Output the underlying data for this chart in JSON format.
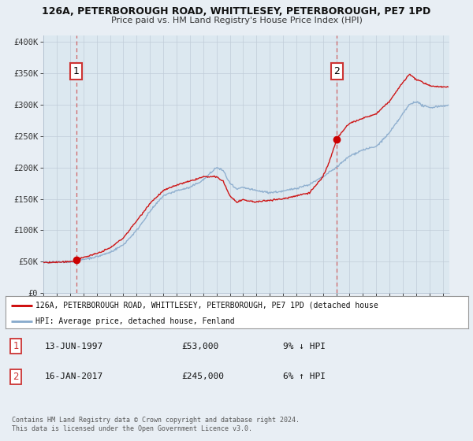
{
  "title1": "126A, PETERBOROUGH ROAD, WHITTLESEY, PETERBOROUGH, PE7 1PD",
  "title2": "Price paid vs. HM Land Registry's House Price Index (HPI)",
  "legend_line1": "126A, PETERBOROUGH ROAD, WHITTLESEY, PETERBOROUGH, PE7 1PD (detached house",
  "legend_line2": "HPI: Average price, detached house, Fenland",
  "annotation1_label": "1",
  "annotation1_date": "13-JUN-1997",
  "annotation1_price": "£53,000",
  "annotation1_hpi": "9% ↓ HPI",
  "annotation2_label": "2",
  "annotation2_date": "16-JAN-2017",
  "annotation2_price": "£245,000",
  "annotation2_hpi": "6% ↑ HPI",
  "sale1_year": 1997.45,
  "sale1_value": 53000,
  "sale2_year": 2017.04,
  "sale2_value": 245000,
  "ylabel_values": [
    0,
    50000,
    100000,
    150000,
    200000,
    250000,
    300000,
    350000,
    400000
  ],
  "ylabel_labels": [
    "£0",
    "£50K",
    "£100K",
    "£150K",
    "£200K",
    "£250K",
    "£300K",
    "£350K",
    "£400K"
  ],
  "copyright_text": "Contains HM Land Registry data © Crown copyright and database right 2024.\nThis data is licensed under the Open Government Licence v3.0.",
  "line_color_red": "#cc0000",
  "line_color_blue": "#88aacc",
  "background_color": "#e8eef4",
  "plot_bg_color": "#dce8f0",
  "grid_color": "#c0ccd8",
  "xmin": 1995,
  "xmax": 2025.5,
  "ymin": 0,
  "ymax": 410000,
  "hpi_points": [
    [
      1995.0,
      49000
    ],
    [
      1996.0,
      49500
    ],
    [
      1997.0,
      50000
    ],
    [
      1997.5,
      51000
    ],
    [
      1998.0,
      54000
    ],
    [
      1999.0,
      58000
    ],
    [
      2000.0,
      65000
    ],
    [
      2001.0,
      77000
    ],
    [
      2002.0,
      100000
    ],
    [
      2003.0,
      130000
    ],
    [
      2004.0,
      155000
    ],
    [
      2005.0,
      163000
    ],
    [
      2006.0,
      168000
    ],
    [
      2007.0,
      180000
    ],
    [
      2008.0,
      200000
    ],
    [
      2008.5,
      195000
    ],
    [
      2009.0,
      175000
    ],
    [
      2009.5,
      165000
    ],
    [
      2010.0,
      168000
    ],
    [
      2011.0,
      163000
    ],
    [
      2012.0,
      160000
    ],
    [
      2013.0,
      162000
    ],
    [
      2014.0,
      167000
    ],
    [
      2015.0,
      173000
    ],
    [
      2016.0,
      185000
    ],
    [
      2017.0,
      200000
    ],
    [
      2018.0,
      218000
    ],
    [
      2019.0,
      228000
    ],
    [
      2020.0,
      233000
    ],
    [
      2021.0,
      255000
    ],
    [
      2022.0,
      285000
    ],
    [
      2022.5,
      300000
    ],
    [
      2023.0,
      305000
    ],
    [
      2023.5,
      298000
    ],
    [
      2024.0,
      295000
    ],
    [
      2025.0,
      298000
    ]
  ],
  "red_points": [
    [
      1995.0,
      49000
    ],
    [
      1996.0,
      49200
    ],
    [
      1997.0,
      50000
    ],
    [
      1997.45,
      53000
    ],
    [
      1998.0,
      57000
    ],
    [
      1999.0,
      63000
    ],
    [
      2000.0,
      72000
    ],
    [
      2001.0,
      88000
    ],
    [
      2002.0,
      115000
    ],
    [
      2003.0,
      143000
    ],
    [
      2004.0,
      163000
    ],
    [
      2005.0,
      172000
    ],
    [
      2006.0,
      178000
    ],
    [
      2007.0,
      185000
    ],
    [
      2008.0,
      185000
    ],
    [
      2008.5,
      178000
    ],
    [
      2009.0,
      155000
    ],
    [
      2009.5,
      145000
    ],
    [
      2010.0,
      148000
    ],
    [
      2011.0,
      145000
    ],
    [
      2012.0,
      148000
    ],
    [
      2013.0,
      150000
    ],
    [
      2014.0,
      155000
    ],
    [
      2015.0,
      160000
    ],
    [
      2016.0,
      185000
    ],
    [
      2016.5,
      210000
    ],
    [
      2017.04,
      245000
    ],
    [
      2017.5,
      258000
    ],
    [
      2018.0,
      270000
    ],
    [
      2019.0,
      278000
    ],
    [
      2020.0,
      285000
    ],
    [
      2021.0,
      305000
    ],
    [
      2022.0,
      335000
    ],
    [
      2022.5,
      348000
    ],
    [
      2023.0,
      340000
    ],
    [
      2023.5,
      335000
    ],
    [
      2024.0,
      330000
    ],
    [
      2025.0,
      328000
    ]
  ]
}
